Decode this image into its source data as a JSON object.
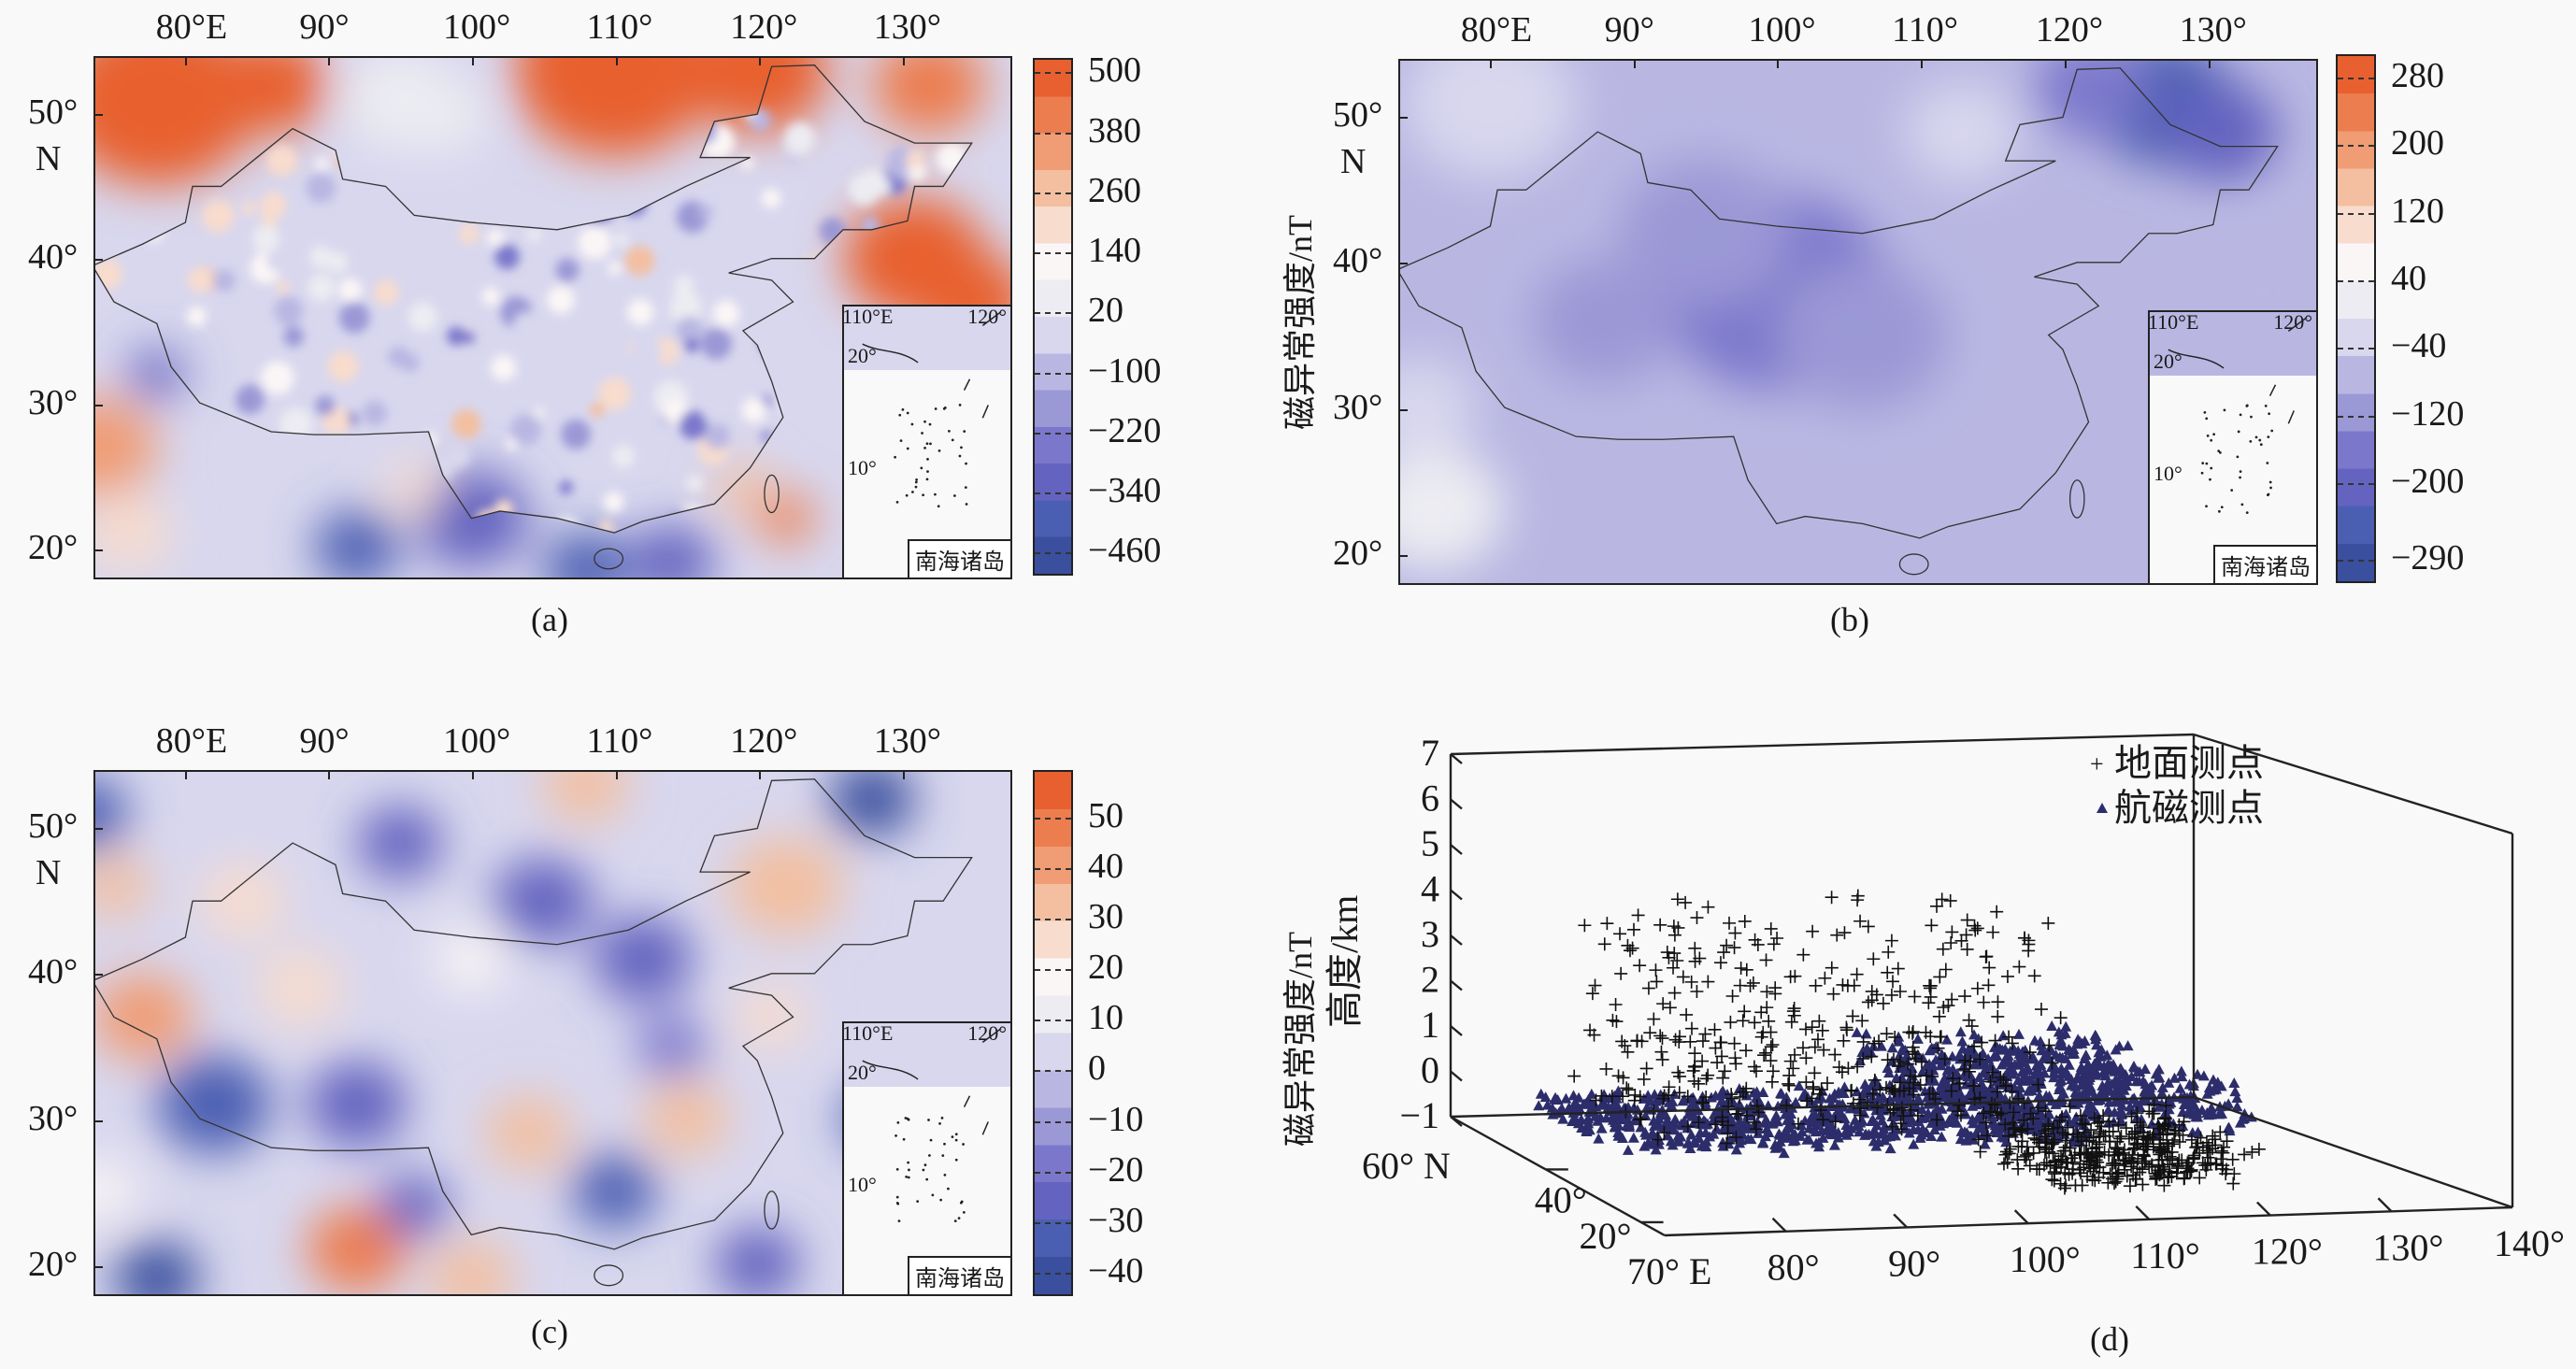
{
  "chart_data": [
    {
      "type": "heatmap",
      "caption": "(a)",
      "lon_ticks": [
        80,
        90,
        100,
        110,
        120,
        130
      ],
      "lon_tick_labels": [
        "80°E",
        "90°",
        "100°",
        "110°",
        "120°",
        "130°"
      ],
      "lat_ticks": [
        50,
        40,
        30,
        20
      ],
      "lat_tick_labels": [
        "50°",
        "40°",
        "30°",
        "20°"
      ],
      "lat_unit_label": "N",
      "extent": {
        "lon": [
          73.7,
          137.7
        ],
        "lat": [
          17.9,
          53.9
        ]
      },
      "colorbar": {
        "label": "磁异常强度/nT",
        "range": [
          -510,
          525
        ],
        "ticks": [
          500,
          380,
          260,
          140,
          20,
          -100,
          -220,
          -340,
          -460
        ],
        "tick_labels": [
          "500",
          "380",
          "260",
          "140",
          "20",
          "−100",
          "−220",
          "−340",
          "−460"
        ]
      },
      "background_value": -40,
      "noise": {
        "amplitude": 260,
        "count": 260
      },
      "anomaly_centers": [
        [
          78,
          51,
          7,
          480
        ],
        [
          86,
          52,
          4,
          460
        ],
        [
          110,
          53,
          7,
          480
        ],
        [
          120,
          53,
          5,
          470
        ],
        [
          132,
          52,
          4,
          420
        ],
        [
          131,
          40,
          5,
          480
        ],
        [
          135,
          37,
          4,
          470
        ],
        [
          74,
          27,
          4,
          320
        ],
        [
          76,
          21,
          3,
          200
        ],
        [
          95,
          51,
          4,
          20
        ],
        [
          98,
          50,
          3,
          20
        ],
        [
          92,
          20,
          3,
          -380
        ],
        [
          100,
          22,
          4,
          -360
        ],
        [
          108,
          18.5,
          3,
          -380
        ],
        [
          114,
          19,
          3,
          -360
        ],
        [
          78,
          32,
          2,
          -300
        ],
        [
          122,
          22,
          2,
          380
        ],
        [
          119,
          24,
          2,
          300
        ],
        [
          96,
          24,
          2,
          160
        ]
      ],
      "inset": {
        "title": "南海诸岛",
        "lon_labels": [
          "110°E",
          "120°"
        ],
        "lat_labels": [
          "20°",
          "10°"
        ]
      }
    },
    {
      "type": "heatmap",
      "caption": "(b)",
      "lon_ticks": [
        80,
        90,
        100,
        110,
        120,
        130
      ],
      "lon_tick_labels": [
        "80°E",
        "90°",
        "100°",
        "110°",
        "120°",
        "130°"
      ],
      "lat_ticks": [
        50,
        40,
        30,
        20
      ],
      "lat_tick_labels": [
        "50°",
        "40°",
        "30°",
        "20°"
      ],
      "lat_unit_label": "N",
      "extent": {
        "lon": [
          73.7,
          137.7
        ],
        "lat": [
          17.9,
          53.9
        ]
      },
      "colorbar": {
        "label": "磁异常强度/nT",
        "range": [
          -320,
          305
        ],
        "ticks": [
          280,
          200,
          120,
          40,
          -40,
          -120,
          -200,
          -290
        ],
        "tick_labels": [
          "280",
          "200",
          "120",
          "40",
          "−40",
          "−120",
          "−200",
          "−290"
        ]
      },
      "background_value": -70,
      "noise": {
        "amplitude": 0,
        "count": 0
      },
      "anomaly_centers": [
        [
          100,
          38,
          8,
          -150
        ],
        [
          95,
          42,
          6,
          -130
        ],
        [
          106,
          35,
          6,
          -140
        ],
        [
          88,
          36,
          5,
          -110
        ],
        [
          127,
          51,
          5,
          -240
        ],
        [
          131,
          49,
          4,
          -210
        ],
        [
          122,
          52,
          4,
          -160
        ],
        [
          76,
          23,
          5,
          10
        ],
        [
          75,
          30,
          4,
          -30
        ],
        [
          80,
          51,
          6,
          -40
        ],
        [
          113,
          49,
          4,
          -40
        ],
        [
          134,
          38,
          5,
          -60
        ]
      ],
      "inset": {
        "title": "南海诸岛",
        "lon_labels": [
          "110°E",
          "120°"
        ],
        "lat_labels": [
          "20°",
          "10°"
        ]
      }
    },
    {
      "type": "heatmap",
      "caption": "(c)",
      "lon_ticks": [
        80,
        90,
        100,
        110,
        120,
        130
      ],
      "lon_tick_labels": [
        "80°E",
        "90°",
        "100°",
        "110°",
        "120°",
        "130°"
      ],
      "lat_ticks": [
        50,
        40,
        30,
        20
      ],
      "lat_tick_labels": [
        "50°",
        "40°",
        "30°",
        "20°"
      ],
      "lat_unit_label": "N",
      "extent": {
        "lon": [
          73.7,
          137.7
        ],
        "lat": [
          17.9,
          53.9
        ]
      },
      "colorbar": {
        "label": "磁异常强度/nT",
        "range": [
          -45,
          59
        ],
        "ticks": [
          50,
          40,
          30,
          20,
          10,
          0,
          -10,
          -20,
          -30,
          -40
        ],
        "tick_labels": [
          "50",
          "40",
          "30",
          "20",
          "10",
          "0",
          "−10",
          "−20",
          "−30",
          "−40"
        ]
      },
      "background_value": 0,
      "noise": {
        "amplitude": 0,
        "count": 0
      },
      "anomaly_centers": [
        [
          108,
          53,
          3,
          35
        ],
        [
          122,
          46,
          4,
          35
        ],
        [
          77,
          37,
          3.5,
          40
        ],
        [
          88,
          39,
          3,
          25
        ],
        [
          84,
          45,
          3,
          25
        ],
        [
          75,
          46,
          2.5,
          30
        ],
        [
          100,
          41,
          2.5,
          15
        ],
        [
          104,
          29,
          3,
          35
        ],
        [
          115,
          30,
          3,
          30
        ],
        [
          92,
          21,
          3.5,
          45
        ],
        [
          100,
          19,
          3,
          30
        ],
        [
          121,
          37,
          2.5,
          25
        ],
        [
          136,
          30,
          3,
          25
        ],
        [
          74,
          25,
          2.5,
          20
        ],
        [
          82,
          31,
          4,
          -35
        ],
        [
          92,
          31,
          3.5,
          -30
        ],
        [
          112,
          41,
          3.5,
          -25
        ],
        [
          105,
          45,
          3.5,
          -25
        ],
        [
          128,
          52,
          3,
          -40
        ],
        [
          110,
          25,
          3,
          -35
        ],
        [
          96,
          24,
          2.5,
          -25
        ],
        [
          78,
          19,
          3,
          -40
        ],
        [
          129,
          30,
          3,
          -35
        ],
        [
          120,
          20,
          3,
          -25
        ],
        [
          73,
          51,
          3,
          -35
        ],
        [
          95,
          49,
          3,
          -30
        ],
        [
          114,
          35,
          2.5,
          -20
        ]
      ],
      "inset": {
        "title": "南海诸岛",
        "lon_labels": [
          "110°E",
          "120°"
        ],
        "lat_labels": [
          "20°",
          "10°"
        ]
      }
    },
    {
      "type": "scatter3d",
      "caption": "(d)",
      "xlabel": "",
      "ylabel": "",
      "zlabel": "高度/km",
      "x_ticks": [
        70,
        80,
        90,
        100,
        110,
        120,
        130,
        140
      ],
      "x_tick_labels": [
        "70° E",
        "80°",
        "90°",
        "100°",
        "110°",
        "120°",
        "130°",
        "140°"
      ],
      "y_ticks": [
        60,
        40,
        20
      ],
      "y_tick_labels": [
        "60° N",
        "40°",
        "20°"
      ],
      "z_ticks": [
        7,
        6,
        5,
        4,
        3,
        2,
        1,
        0,
        -1
      ],
      "z_tick_labels": [
        "7",
        "6",
        "5",
        "4",
        "3",
        "2",
        "1",
        "0",
        "−1"
      ],
      "xlim": [
        70,
        140
      ],
      "ylim": [
        15,
        60
      ],
      "zlim": [
        -1,
        7
      ],
      "legend_position": "top-right",
      "series": [
        {
          "name": "地面测点",
          "marker": "plus",
          "color": "#111111",
          "clusters": [
            {
              "lon": [
                76,
                112
              ],
              "lat": [
                30,
                50
              ],
              "alt": [
                0,
                4.5
              ],
              "count": 420
            },
            {
              "lon": [
                105,
                122
              ],
              "lat": [
                20,
                35
              ],
              "alt": [
                -0.6,
                0.4
              ],
              "count": 380
            }
          ]
        },
        {
          "name": "航磁测点",
          "marker": "triangle",
          "color": "#2c2d6a",
          "clusters": [
            {
              "lon": [
                72,
                112
              ],
              "lat": [
                28,
                48
              ],
              "alt": [
                -0.1,
                0.25
              ],
              "count": 700
            },
            {
              "lon": [
                105,
                126
              ],
              "lat": [
                28,
                55
              ],
              "alt": [
                0,
                1.0
              ],
              "count": 600
            }
          ]
        }
      ]
    }
  ],
  "palette": [
    "#3a4f9e",
    "#4b5fb2",
    "#6464c0",
    "#7b78cc",
    "#9b98d6",
    "#b9b7e2",
    "#d8d7ee",
    "#ececf2",
    "#fbf6f6",
    "#f8dccd",
    "#f3bfa0",
    "#f09c74",
    "#ec7d4f",
    "#e8602f"
  ]
}
